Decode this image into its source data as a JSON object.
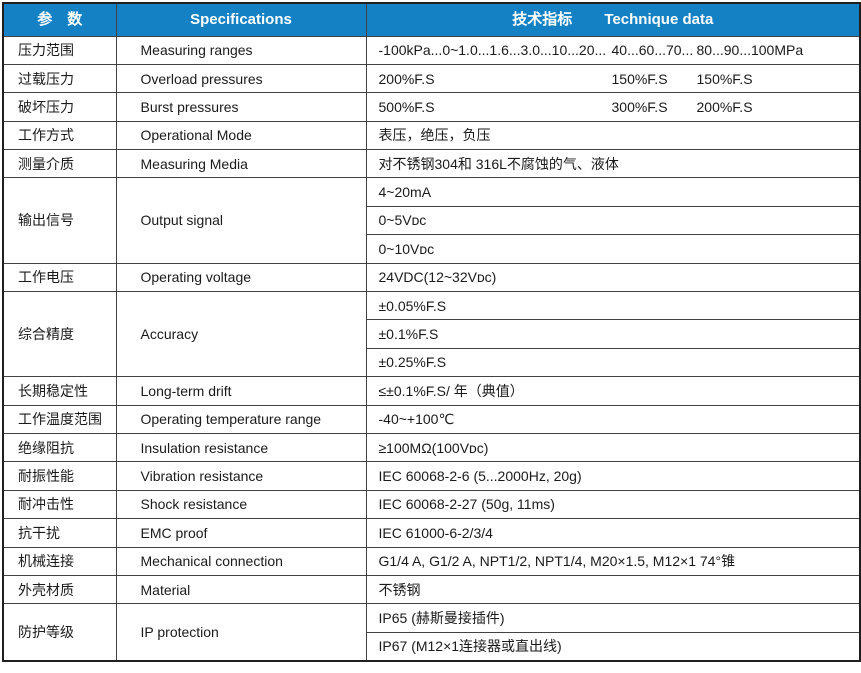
{
  "header": {
    "param": "参　数",
    "specifications": "Specifications",
    "technique_zh": "技术指标",
    "technique_en": "Technique data"
  },
  "colors": {
    "header_bg": "#1581C5",
    "header_text": "#FFFFFF",
    "border_outer": "#1F1F1F",
    "border_inner": "#424242",
    "body_text": "#1A1A1A"
  },
  "rows": [
    {
      "param_zh": "压力范围",
      "param_en": "Measuring ranges",
      "values": [
        "-100kPa...0~1.0...1.6...3.0...10...20...",
        "40...60...70...",
        "80...90...100MPa"
      ]
    },
    {
      "param_zh": "过载压力",
      "param_en": "Overload pressures",
      "values": [
        "200%F.S",
        "150%F.S",
        "150%F.S"
      ]
    },
    {
      "param_zh": "破坏压力",
      "param_en": "Burst pressures",
      "values": [
        "500%F.S",
        "300%F.S",
        "200%F.S"
      ]
    },
    {
      "param_zh": "工作方式",
      "param_en": "Operational Mode",
      "values": [
        "表压，绝压，负压"
      ]
    },
    {
      "param_zh": "测量介质",
      "param_en": "Measuring Media",
      "values": [
        "对不锈钢304和 316L不腐蚀的气、液体"
      ]
    },
    {
      "param_zh": "输出信号",
      "param_en": "Output signal",
      "values": [
        "4~20mA",
        "0~5Vᴅᴄ",
        "0~10Vᴅᴄ"
      ]
    },
    {
      "param_zh": "工作电压",
      "param_en": "Operating voltage",
      "values": [
        "24VDC(12~32Vᴅᴄ)"
      ]
    },
    {
      "param_zh": "综合精度",
      "param_en": "Accuracy",
      "values": [
        "±0.05%F.S",
        "±0.1%F.S",
        "±0.25%F.S"
      ]
    },
    {
      "param_zh": "长期稳定性",
      "param_en": "Long-term drift",
      "values": [
        "≤±0.1%F.S/ 年（典值）"
      ]
    },
    {
      "param_zh": "工作温度范围",
      "param_en": "Operating temperature range",
      "values": [
        "-40~+100℃"
      ]
    },
    {
      "param_zh": "绝缘阻抗",
      "param_en": "Insulation resistance",
      "values": [
        "≥100MΩ(100Vᴅᴄ)"
      ]
    },
    {
      "param_zh": "耐振性能",
      "param_en": "Vibration resistance",
      "values": [
        "IEC 60068-2-6 (5...2000Hz, 20g)"
      ]
    },
    {
      "param_zh": "耐冲击性",
      "param_en": "Shock resistance",
      "values": [
        "IEC 60068-2-27 (50g, 11ms)"
      ]
    },
    {
      "param_zh": "抗干扰",
      "param_en": "EMC proof",
      "values": [
        "IEC 61000-6-2/3/4"
      ]
    },
    {
      "param_zh": "机械连接",
      "param_en": "Mechanical connection",
      "values": [
        "G1/4 A, G1/2 A, NPT1/2, NPT1/4, M20×1.5, M12×1 74°锥"
      ]
    },
    {
      "param_zh": "外壳材质",
      "param_en": "Material",
      "values": [
        "不锈钢"
      ]
    },
    {
      "param_zh": "防护等级",
      "param_en": "IP protection",
      "values": [
        "IP65 (赫斯曼接插件)",
        "IP67 (M12×1连接器或直出线)"
      ]
    }
  ]
}
